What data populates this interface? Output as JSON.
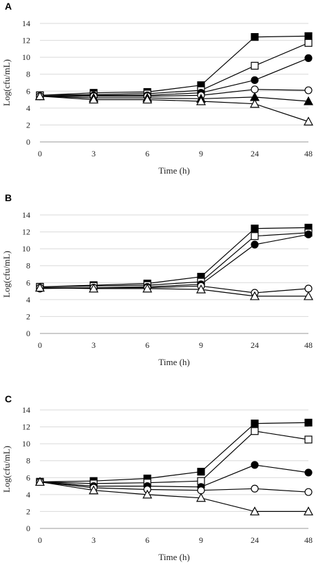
{
  "chart_data": [
    {
      "panel": "A",
      "type": "line",
      "xlabel": "Time (h)",
      "ylabel": "Log(cfu/mL)",
      "categories": [
        "0",
        "3",
        "6",
        "9",
        "24",
        "48"
      ],
      "ylim": [
        0,
        14
      ],
      "yticks": [
        "0",
        "2",
        "4",
        "6",
        "8",
        "10",
        "12",
        "14"
      ],
      "grid": true,
      "series": [
        {
          "marker": "filled-square",
          "values": [
            5.5,
            5.8,
            5.9,
            6.7,
            12.4,
            12.5
          ]
        },
        {
          "marker": "open-square",
          "values": [
            5.5,
            5.6,
            5.7,
            6.1,
            9.0,
            11.7
          ]
        },
        {
          "marker": "filled-circle",
          "values": [
            5.4,
            5.5,
            5.5,
            5.8,
            7.3,
            9.9
          ]
        },
        {
          "marker": "open-circle",
          "values": [
            5.4,
            5.4,
            5.4,
            5.5,
            6.2,
            6.1
          ]
        },
        {
          "marker": "filled-triangle",
          "values": [
            5.4,
            5.2,
            5.2,
            5.1,
            5.3,
            4.8
          ]
        },
        {
          "marker": "open-triangle",
          "values": [
            5.4,
            5.0,
            5.0,
            4.8,
            4.5,
            2.4
          ]
        }
      ]
    },
    {
      "panel": "B",
      "type": "line",
      "xlabel": "Time (h)",
      "ylabel": "Log(cfu/mL)",
      "categories": [
        "0",
        "3",
        "6",
        "9",
        "24",
        "48"
      ],
      "ylim": [
        0,
        14
      ],
      "yticks": [
        "0",
        "2",
        "4",
        "6",
        "8",
        "10",
        "12",
        "14"
      ],
      "grid": true,
      "series": [
        {
          "marker": "filled-square",
          "values": [
            5.5,
            5.7,
            5.9,
            6.7,
            12.4,
            12.5
          ]
        },
        {
          "marker": "open-square",
          "values": [
            5.5,
            5.6,
            5.7,
            6.1,
            11.5,
            11.9
          ]
        },
        {
          "marker": "filled-circle",
          "values": [
            5.3,
            5.4,
            5.5,
            5.8,
            10.5,
            11.7
          ]
        },
        {
          "marker": "open-circle",
          "values": [
            5.4,
            5.4,
            5.4,
            5.6,
            4.8,
            5.3
          ]
        },
        {
          "marker": "open-triangle",
          "values": [
            5.4,
            5.3,
            5.3,
            5.2,
            4.4,
            4.4
          ]
        }
      ]
    },
    {
      "panel": "C",
      "type": "line",
      "xlabel": "Time (h)",
      "ylabel": "Log(cfu/mL)",
      "categories": [
        "0",
        "3",
        "6",
        "9",
        "24",
        "48"
      ],
      "ylim": [
        0,
        14
      ],
      "yticks": [
        "0",
        "2",
        "4",
        "6",
        "8",
        "10",
        "12",
        "14"
      ],
      "grid": true,
      "series": [
        {
          "marker": "filled-square",
          "values": [
            5.5,
            5.6,
            5.9,
            6.7,
            12.4,
            12.5
          ]
        },
        {
          "marker": "open-square",
          "values": [
            5.5,
            5.3,
            5.4,
            5.6,
            11.5,
            10.5
          ]
        },
        {
          "marker": "filled-circle",
          "values": [
            5.5,
            5.0,
            5.0,
            4.9,
            7.5,
            6.6
          ]
        },
        {
          "marker": "open-circle",
          "values": [
            5.5,
            4.8,
            4.6,
            4.5,
            4.7,
            4.3
          ]
        },
        {
          "marker": "open-triangle",
          "values": [
            5.5,
            4.5,
            4.0,
            3.6,
            2.0,
            2.0
          ]
        }
      ]
    }
  ]
}
